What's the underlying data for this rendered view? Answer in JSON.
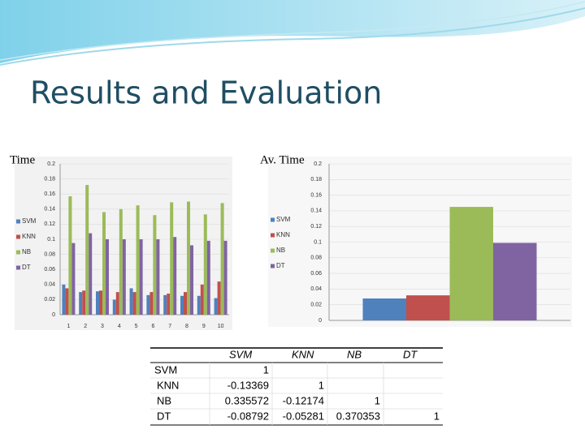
{
  "title": "Results and Evaluation",
  "chart_data": [
    {
      "type": "bar",
      "ylabel": "Time",
      "categories": [
        "1",
        "2",
        "3",
        "4",
        "5",
        "6",
        "7",
        "8",
        "9",
        "10"
      ],
      "series": [
        {
          "name": "SVM",
          "color": "#4f81bd",
          "values": [
            0.04,
            0.03,
            0.031,
            0.02,
            0.035,
            0.026,
            0.026,
            0.025,
            0.025,
            0.022
          ]
        },
        {
          "name": "KNN",
          "color": "#c0504d",
          "values": [
            0.035,
            0.032,
            0.032,
            0.03,
            0.03,
            0.03,
            0.028,
            0.03,
            0.04,
            0.044
          ]
        },
        {
          "name": "NB",
          "color": "#9bbb59",
          "values": [
            0.157,
            0.172,
            0.136,
            0.14,
            0.145,
            0.132,
            0.149,
            0.15,
            0.133,
            0.148
          ]
        },
        {
          "name": "DT",
          "color": "#8064a2",
          "values": [
            0.095,
            0.108,
            0.1,
            0.1,
            0.1,
            0.1,
            0.103,
            0.092,
            0.098,
            0.098
          ]
        }
      ],
      "ylim": [
        0,
        0.2
      ],
      "yticks": [
        0,
        0.02,
        0.04,
        0.06,
        0.08,
        0.1,
        0.12,
        0.14,
        0.16,
        0.18,
        0.2
      ],
      "legend": "left"
    },
    {
      "type": "bar",
      "ylabel": "Av. Time",
      "categories": [
        null
      ],
      "series": [
        {
          "name": "SVM",
          "color": "#4f81bd",
          "values": [
            0.028
          ]
        },
        {
          "name": "KNN",
          "color": "#c0504d",
          "values": [
            0.032
          ]
        },
        {
          "name": "NB",
          "color": "#9bbb59",
          "values": [
            0.145
          ]
        },
        {
          "name": "DT",
          "color": "#8064a2",
          "values": [
            0.099
          ]
        }
      ],
      "ylim": [
        0,
        0.2
      ],
      "yticks": [
        0,
        0.02,
        0.04,
        0.06,
        0.08,
        0.1,
        0.12,
        0.14,
        0.16,
        0.18,
        0.2
      ],
      "legend": "left"
    }
  ],
  "table": {
    "columns": [
      "SVM",
      "KNN",
      "NB",
      "DT"
    ],
    "rows": [
      {
        "label": "SVM",
        "values": [
          1
        ]
      },
      {
        "label": "KNN",
        "values": [
          -0.13369,
          1
        ]
      },
      {
        "label": "NB",
        "values": [
          0.335572,
          -0.12174,
          1
        ]
      },
      {
        "label": "DT",
        "values": [
          -0.08792,
          -0.05281,
          0.370353,
          1
        ]
      }
    ]
  }
}
